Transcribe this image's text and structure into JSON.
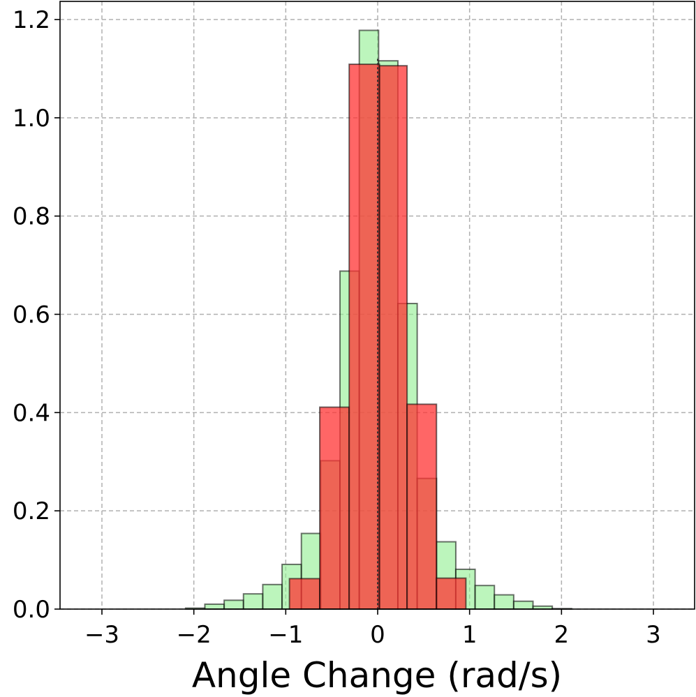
{
  "chart_data": {
    "type": "bar",
    "title": "",
    "xlabel": "Angle Change (rad/s)",
    "ylabel": "",
    "xlim": [
      -3.3,
      3.5
    ],
    "ylim": [
      0,
      1.24
    ],
    "grid": true,
    "x_ticks": [
      -3,
      -2,
      -1,
      0,
      1,
      2,
      3
    ],
    "x_tick_labels": [
      "−3",
      "−2",
      "−1",
      "0",
      "1",
      "2",
      "3"
    ],
    "y_ticks": [
      0.0,
      0.2,
      0.4,
      0.6,
      0.8,
      1.0,
      1.2
    ],
    "y_tick_labels": [
      "0.0",
      "0.2",
      "0.4",
      "0.6",
      "0.8",
      "1.0",
      "1.2"
    ],
    "series": [
      {
        "color": "#90EE90",
        "alpha": 0.6,
        "bins": [
          {
            "x0": -3.14,
            "x1": -2.93,
            "value": 0.0
          },
          {
            "x0": -2.93,
            "x1": -2.72,
            "value": 0.0
          },
          {
            "x0": -2.72,
            "x1": -2.51,
            "value": 0.0
          },
          {
            "x0": -2.51,
            "x1": -2.3,
            "value": 0.0
          },
          {
            "x0": -2.3,
            "x1": -2.09,
            "value": 0.0
          },
          {
            "x0": -2.09,
            "x1": -1.88,
            "value": 0.002
          },
          {
            "x0": -1.88,
            "x1": -1.67,
            "value": 0.01
          },
          {
            "x0": -1.67,
            "x1": -1.46,
            "value": 0.018
          },
          {
            "x0": -1.46,
            "x1": -1.25,
            "value": 0.031
          },
          {
            "x0": -1.25,
            "x1": -1.04,
            "value": 0.05
          },
          {
            "x0": -1.04,
            "x1": -0.83,
            "value": 0.091
          },
          {
            "x0": -0.83,
            "x1": -0.62,
            "value": 0.154
          },
          {
            "x0": -0.62,
            "x1": -0.41,
            "value": 0.302
          },
          {
            "x0": -0.41,
            "x1": -0.2,
            "value": 0.688
          },
          {
            "x0": -0.2,
            "x1": 0.01,
            "value": 1.178
          },
          {
            "x0": 0.01,
            "x1": 0.22,
            "value": 1.116
          },
          {
            "x0": 0.22,
            "x1": 0.43,
            "value": 0.622
          },
          {
            "x0": 0.43,
            "x1": 0.64,
            "value": 0.266
          },
          {
            "x0": 0.64,
            "x1": 0.85,
            "value": 0.137
          },
          {
            "x0": 0.85,
            "x1": 1.06,
            "value": 0.081
          },
          {
            "x0": 1.06,
            "x1": 1.27,
            "value": 0.048
          },
          {
            "x0": 1.27,
            "x1": 1.48,
            "value": 0.029
          },
          {
            "x0": 1.48,
            "x1": 1.69,
            "value": 0.016
          },
          {
            "x0": 1.69,
            "x1": 1.9,
            "value": 0.006
          },
          {
            "x0": 1.9,
            "x1": 2.11,
            "value": 0.001
          },
          {
            "x0": 2.11,
            "x1": 2.32,
            "value": 0.0
          },
          {
            "x0": 2.32,
            "x1": 2.53,
            "value": 0.0
          },
          {
            "x0": 2.53,
            "x1": 2.74,
            "value": 0.0
          },
          {
            "x0": 2.74,
            "x1": 2.95,
            "value": 0.0
          },
          {
            "x0": 2.95,
            "x1": 3.16,
            "value": 0.0
          }
        ]
      },
      {
        "color": "#FF3333",
        "alpha": 0.75,
        "bins": [
          {
            "x0": -0.96,
            "x1": -0.63,
            "value": 0.062
          },
          {
            "x0": -0.63,
            "x1": -0.31,
            "value": 0.411
          },
          {
            "x0": -0.31,
            "x1": 0.02,
            "value": 1.109
          },
          {
            "x0": 0.02,
            "x1": 0.32,
            "value": 1.106
          },
          {
            "x0": 0.32,
            "x1": 0.64,
            "value": 0.417
          },
          {
            "x0": 0.64,
            "x1": 0.96,
            "value": 0.063
          }
        ]
      }
    ],
    "vline": {
      "x": 0.0,
      "style": "dotted"
    }
  }
}
